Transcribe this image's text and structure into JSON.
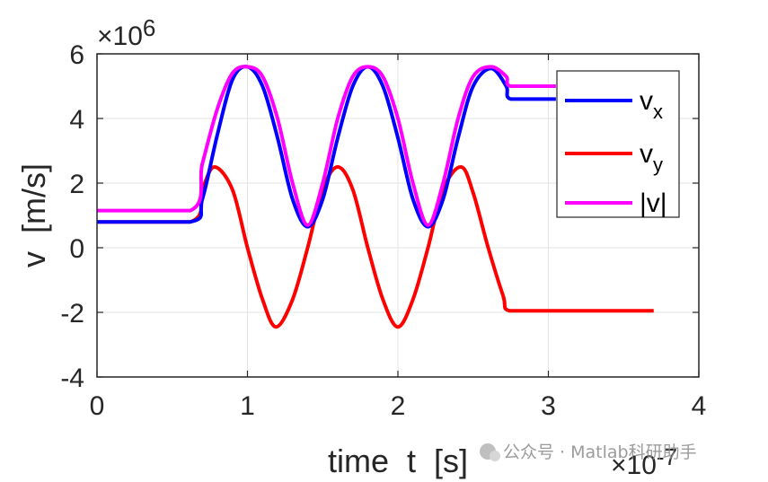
{
  "chart_data": {
    "type": "line",
    "xlabel": "time  t  [s]",
    "ylabel": "v  [m/s]",
    "x_multiplier": "×10",
    "x_multiplier_exp": "-7",
    "y_multiplier": "×10",
    "y_multiplier_exp": "6",
    "xlim": [
      0,
      4e-07
    ],
    "ylim": [
      -4000000.0,
      6000000.0
    ],
    "xticks": [
      0,
      1e-07,
      2e-07,
      3e-07,
      4e-07
    ],
    "xtick_labels": [
      "0",
      "1",
      "2",
      "3",
      "4"
    ],
    "yticks": [
      -4000000.0,
      -2000000.0,
      0,
      2000000.0,
      4000000.0,
      6000000.0
    ],
    "ytick_labels": [
      "-4",
      "-2",
      "0",
      "2",
      "4",
      "6"
    ],
    "grid": true,
    "legend_position": "top-right",
    "series": [
      {
        "name": "v",
        "name_sub": "x",
        "color": "#0000ff",
        "x": [
          0,
          6.2e-08,
          7e-08,
          8e-08,
          9e-08,
          1e-07,
          1.1e-07,
          1.2e-07,
          1.3e-07,
          1.4e-07,
          1.5e-07,
          1.6e-07,
          1.7e-07,
          1.8e-07,
          1.9e-07,
          2e-07,
          2.1e-07,
          2.2e-07,
          2.3e-07,
          2.4e-07,
          2.5e-07,
          2.62e-07,
          2.72e-07,
          2.75e-07,
          3e-07,
          3.05e-07
        ],
        "y": [
          800000,
          800000,
          1500000,
          3500000,
          5200000,
          5600000,
          5000000,
          3400000,
          1500000,
          650000,
          1500000,
          3400000,
          5000000,
          5600000,
          5000000,
          3400000,
          1500000,
          650000,
          1500000,
          3400000,
          5000000,
          5550000,
          5000000,
          4600000,
          4600000,
          4600000
        ]
      },
      {
        "name": "v",
        "name_sub": "y",
        "color": "#ff0000",
        "x": [
          0,
          6.2e-08,
          7e-08,
          7.8e-08,
          9e-08,
          1e-07,
          1.1e-07,
          1.19e-07,
          1.3e-07,
          1.4e-07,
          1.5e-07,
          1.6e-07,
          1.7e-07,
          1.8e-07,
          1.9e-07,
          2e-07,
          2.1e-07,
          2.2e-07,
          2.3e-07,
          2.42e-07,
          2.5e-07,
          2.6e-07,
          2.7e-07,
          2.74e-07,
          3e-07,
          3.7e-07
        ],
        "y": [
          800000,
          800000,
          1800000,
          2500000,
          1800000,
          0,
          -1600000,
          -2450000,
          -1600000,
          0,
          1800000,
          2500000,
          1800000,
          0,
          -1600000,
          -2450000,
          -1600000,
          0,
          1800000,
          2500000,
          1700000,
          0,
          -1500000,
          -1950000,
          -1950000,
          -1950000
        ]
      },
      {
        "name": "|v|",
        "name_sub": "",
        "color": "#ff00ff",
        "x": [
          0,
          6.2e-08,
          7e-08,
          8e-08,
          9e-08,
          1e-07,
          1.1e-07,
          1.2e-07,
          1.3e-07,
          1.4e-07,
          1.5e-07,
          1.6e-07,
          1.7e-07,
          1.8e-07,
          1.9e-07,
          2e-07,
          2.1e-07,
          2.2e-07,
          2.3e-07,
          2.4e-07,
          2.5e-07,
          2.62e-07,
          2.72e-07,
          2.75e-07,
          3e-07,
          3.05e-07
        ],
        "y": [
          1150000,
          1150000,
          2600000,
          4300000,
          5400000,
          5600000,
          5300000,
          4000000,
          2000000,
          700000,
          2000000,
          4000000,
          5300000,
          5600000,
          5300000,
          4000000,
          2000000,
          700000,
          2000000,
          4000000,
          5300000,
          5600000,
          5300000,
          5000000,
          5000000,
          5000000
        ]
      }
    ]
  },
  "watermark": "公众号 · Matlab科研助手"
}
